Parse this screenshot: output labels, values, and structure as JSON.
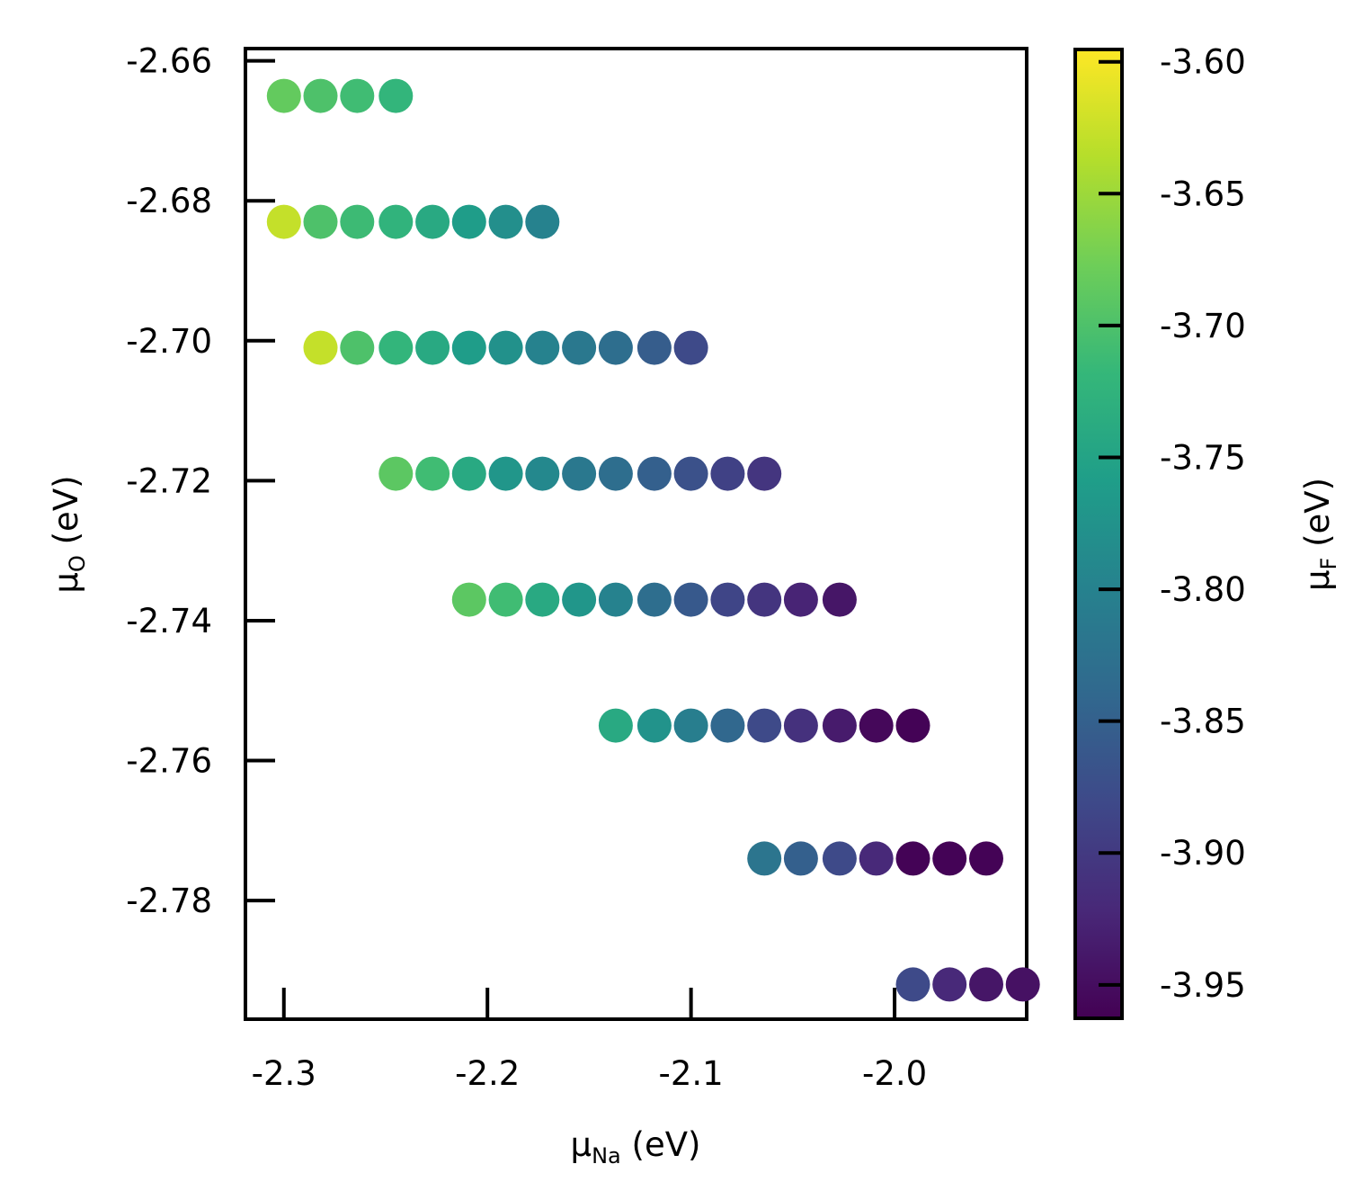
{
  "chart_data": {
    "type": "scatter",
    "title": "",
    "xlabel": {
      "main": "μ",
      "sub": "Na",
      "unit": " (eV)"
    },
    "ylabel": {
      "main": "μ",
      "sub": "O",
      "unit": " (eV)"
    },
    "colorbar_label": {
      "main": "μ",
      "sub": "F",
      "unit": " (eV)"
    },
    "colormap": "viridis",
    "colormap_stops": [
      "#440154",
      "#482878",
      "#3e4989",
      "#31688e",
      "#26828e",
      "#1f9e89",
      "#35b779",
      "#6ece58",
      "#b5de2b",
      "#fde725"
    ],
    "xlim": [
      -2.318,
      -1.936
    ],
    "ylim": [
      -2.7967,
      -2.6585
    ],
    "clim": [
      -3.962,
      -3.596
    ],
    "x_ticks": [
      -2.3,
      -2.2,
      -2.1,
      -2.0
    ],
    "x_tick_labels": [
      "-2.3",
      "-2.2",
      "-2.1",
      "-2.0"
    ],
    "y_ticks": [
      -2.66,
      -2.68,
      -2.7,
      -2.72,
      -2.74,
      -2.76,
      -2.78
    ],
    "y_tick_labels": [
      "-2.66",
      "-2.68",
      "-2.70",
      "-2.72",
      "-2.74",
      "-2.76",
      "-2.78"
    ],
    "c_ticks": [
      -3.6,
      -3.65,
      -3.7,
      -3.75,
      -3.8,
      -3.85,
      -3.9,
      -3.95
    ],
    "c_tick_labels": [
      "-3.60",
      "-3.65",
      "-3.70",
      "-3.75",
      "-3.80",
      "-3.85",
      "-3.90",
      "-3.95"
    ],
    "grid": false,
    "rows": [
      {
        "y": -2.665,
        "x": [
          -2.3,
          -2.282,
          -2.264,
          -2.245
        ],
        "c": [
          -3.685,
          -3.7,
          -3.71,
          -3.722
        ]
      },
      {
        "y": -2.683,
        "x": [
          -2.3,
          -2.282,
          -2.264,
          -2.245,
          -2.227,
          -2.209,
          -2.191,
          -2.173
        ],
        "c": [
          -3.628,
          -3.7,
          -3.712,
          -3.725,
          -3.74,
          -3.76,
          -3.78,
          -3.8
        ]
      },
      {
        "y": -2.701,
        "x": [
          -2.282,
          -2.264,
          -2.245,
          -2.227,
          -2.209,
          -2.191,
          -2.173,
          -2.155,
          -2.137,
          -2.118,
          -2.1
        ],
        "c": [
          -3.628,
          -3.7,
          -3.722,
          -3.74,
          -3.76,
          -3.778,
          -3.8,
          -3.815,
          -3.83,
          -3.855,
          -3.88
        ]
      },
      {
        "y": -2.719,
        "x": [
          -2.245,
          -2.227,
          -2.209,
          -2.191,
          -2.173,
          -2.155,
          -2.137,
          -2.118,
          -2.1,
          -2.082,
          -2.064
        ],
        "c": [
          -3.69,
          -3.71,
          -3.74,
          -3.77,
          -3.79,
          -3.815,
          -3.83,
          -3.85,
          -3.87,
          -3.89,
          -3.905
        ]
      },
      {
        "y": -2.737,
        "x": [
          -2.209,
          -2.191,
          -2.173,
          -2.155,
          -2.137,
          -2.118,
          -2.1,
          -2.082,
          -2.064,
          -2.046,
          -2.027
        ],
        "c": [
          -3.69,
          -3.71,
          -3.74,
          -3.77,
          -3.8,
          -3.83,
          -3.86,
          -3.885,
          -3.905,
          -3.925,
          -3.94
        ]
      },
      {
        "y": -2.755,
        "x": [
          -2.137,
          -2.118,
          -2.1,
          -2.082,
          -2.064,
          -2.046,
          -2.027,
          -2.009,
          -1.991
        ],
        "c": [
          -3.74,
          -3.775,
          -3.805,
          -3.84,
          -3.88,
          -3.91,
          -3.935,
          -3.955,
          -3.96
        ]
      },
      {
        "y": -2.774,
        "x": [
          -2.064,
          -2.046,
          -2.027,
          -2.009,
          -1.991,
          -1.973,
          -1.955
        ],
        "c": [
          -3.82,
          -3.85,
          -3.88,
          -3.92,
          -3.96,
          -3.96,
          -3.96
        ]
      },
      {
        "y": -2.792,
        "x": [
          -1.991,
          -1.973,
          -1.955,
          -1.937
        ],
        "c": [
          -3.88,
          -3.92,
          -3.94,
          -3.945
        ]
      }
    ]
  }
}
